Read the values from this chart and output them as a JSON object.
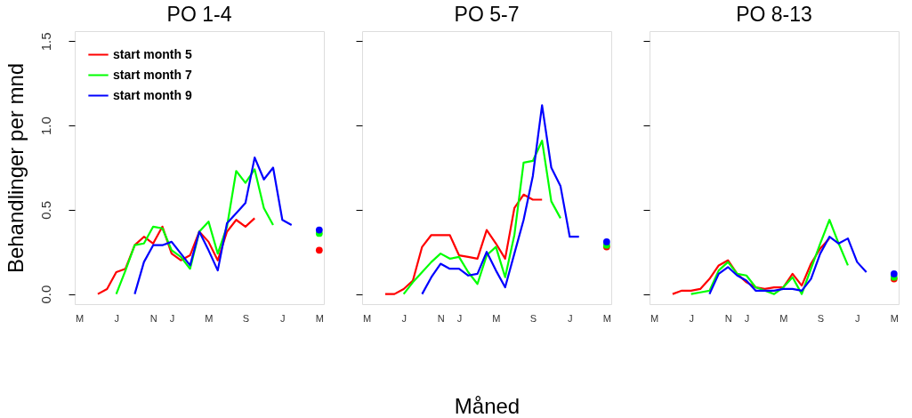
{
  "chart_data": [
    {
      "type": "line",
      "title": "PO 1-4",
      "ylabel": "Behandlinger per mnd",
      "ylim": [
        -0.06,
        1.56
      ],
      "categories": [
        "M",
        null,
        null,
        null,
        "J",
        null,
        null,
        null,
        "N",
        null,
        "J",
        null,
        null,
        null,
        "M",
        null,
        null,
        null,
        "S",
        null,
        null,
        null,
        "J",
        null,
        null,
        null,
        "M"
      ],
      "yticks": [
        {
          "value": 0,
          "label": "0.0"
        },
        0.5,
        {
          "value": 1,
          "label": "1.0"
        },
        1.5
      ],
      "legend": "top left",
      "line_style": "solid",
      "series": [
        {
          "name": "start month 5",
          "color": "#ff0000",
          "values": [
            null,
            null,
            0.0,
            0.03,
            0.13,
            0.15,
            0.29,
            0.34,
            0.3,
            0.4,
            0.24,
            0.2,
            0.23,
            0.37,
            0.31,
            0.2,
            0.37,
            0.44,
            0.4,
            0.45,
            null,
            null,
            null,
            null,
            null,
            null,
            null
          ]
        },
        {
          "name": "start month 7",
          "color": "#00ff00",
          "values": [
            null,
            null,
            null,
            null,
            0.0,
            0.14,
            0.29,
            0.3,
            0.4,
            0.39,
            0.26,
            0.22,
            0.15,
            0.37,
            0.43,
            0.24,
            0.4,
            0.73,
            0.66,
            0.74,
            0.51,
            0.41,
            null,
            null,
            null,
            null,
            null
          ]
        },
        {
          "name": "start month 9",
          "color": "#0000ff",
          "values": [
            null,
            null,
            null,
            null,
            null,
            null,
            0.0,
            0.19,
            0.29,
            0.29,
            0.31,
            0.24,
            0.17,
            0.37,
            0.26,
            0.14,
            0.42,
            0.48,
            0.54,
            0.81,
            0.68,
            0.75,
            0.44,
            0.41,
            null,
            null,
            null
          ]
        },
        {
          "type": "scatter",
          "marker": "circle",
          "color": "#ff0000",
          "values": [
            null,
            null,
            null,
            null,
            null,
            null,
            null,
            null,
            null,
            null,
            null,
            null,
            null,
            null,
            null,
            null,
            null,
            null,
            null,
            null,
            null,
            null,
            null,
            null,
            null,
            null,
            0.26
          ]
        },
        {
          "type": "scatter",
          "marker": "circle",
          "color": "#00ff00",
          "values": [
            null,
            null,
            null,
            null,
            null,
            null,
            null,
            null,
            null,
            null,
            null,
            null,
            null,
            null,
            null,
            null,
            null,
            null,
            null,
            null,
            null,
            null,
            null,
            null,
            null,
            null,
            0.36
          ]
        },
        {
          "type": "scatter",
          "marker": "circle",
          "color": "#0000ff",
          "values": [
            null,
            null,
            null,
            null,
            null,
            null,
            null,
            null,
            null,
            null,
            null,
            null,
            null,
            null,
            null,
            null,
            null,
            null,
            null,
            null,
            null,
            null,
            null,
            null,
            null,
            null,
            0.38
          ]
        }
      ]
    },
    {
      "type": "line",
      "title": "PO 5-7",
      "xlabel": "Måned",
      "ylim": [
        -0.06,
        1.56
      ],
      "tick_labels": "x",
      "categories": [
        "M",
        null,
        null,
        null,
        "J",
        null,
        null,
        null,
        "N",
        null,
        "J",
        null,
        null,
        null,
        "M",
        null,
        null,
        null,
        "S",
        null,
        null,
        null,
        "J",
        null,
        null,
        null,
        "M"
      ],
      "yticks": [
        0,
        0.5,
        1,
        1.5
      ],
      "line_style": "solid",
      "series": [
        {
          "color": "#ff0000",
          "values": [
            null,
            null,
            0.0,
            0.0,
            0.03,
            0.08,
            0.28,
            0.35,
            0.35,
            0.35,
            0.23,
            0.22,
            0.21,
            0.38,
            0.3,
            0.21,
            0.51,
            0.59,
            0.56,
            0.56,
            null,
            null,
            null,
            null,
            null,
            null,
            null
          ]
        },
        {
          "color": "#00ff00",
          "values": [
            null,
            null,
            null,
            null,
            0.0,
            0.07,
            0.13,
            0.19,
            0.24,
            0.21,
            0.22,
            0.13,
            0.06,
            0.23,
            0.28,
            0.1,
            0.35,
            0.78,
            0.79,
            0.91,
            0.55,
            0.45,
            null,
            null,
            null,
            null,
            null
          ]
        },
        {
          "color": "#0000ff",
          "values": [
            null,
            null,
            null,
            null,
            null,
            null,
            0.0,
            0.1,
            0.18,
            0.15,
            0.15,
            0.11,
            0.12,
            0.25,
            0.14,
            0.04,
            0.24,
            0.44,
            0.7,
            1.12,
            0.75,
            0.64,
            0.34,
            0.34,
            null,
            null,
            null
          ]
        },
        {
          "type": "scatter",
          "marker": "circle",
          "color": "#ff0000",
          "values": [
            null,
            null,
            null,
            null,
            null,
            null,
            null,
            null,
            null,
            null,
            null,
            null,
            null,
            null,
            null,
            null,
            null,
            null,
            null,
            null,
            null,
            null,
            null,
            null,
            null,
            null,
            0.28
          ]
        },
        {
          "type": "scatter",
          "marker": "circle",
          "color": "#00ff00",
          "values": [
            null,
            null,
            null,
            null,
            null,
            null,
            null,
            null,
            null,
            null,
            null,
            null,
            null,
            null,
            null,
            null,
            null,
            null,
            null,
            null,
            null,
            null,
            null,
            null,
            null,
            null,
            0.29
          ]
        },
        {
          "type": "scatter",
          "marker": "circle",
          "color": "#0000ff",
          "values": [
            null,
            null,
            null,
            null,
            null,
            null,
            null,
            null,
            null,
            null,
            null,
            null,
            null,
            null,
            null,
            null,
            null,
            null,
            null,
            null,
            null,
            null,
            null,
            null,
            null,
            null,
            0.31
          ]
        }
      ]
    },
    {
      "type": "line",
      "title": "PO 8-13",
      "ylim": [
        -0.06,
        1.56
      ],
      "tick_labels": "x",
      "categories": [
        "M",
        null,
        null,
        null,
        "J",
        null,
        null,
        null,
        "N",
        null,
        "J",
        null,
        null,
        null,
        "M",
        null,
        null,
        null,
        "S",
        null,
        null,
        null,
        "J",
        null,
        null,
        null,
        "M"
      ],
      "yticks": [
        0,
        0.5,
        1,
        1.5
      ],
      "line_style": "solid",
      "series": [
        {
          "color": "#ff0000",
          "values": [
            null,
            null,
            0.0,
            0.02,
            0.02,
            0.03,
            0.09,
            0.17,
            0.2,
            0.12,
            0.07,
            0.04,
            0.03,
            0.04,
            0.04,
            0.12,
            0.05,
            0.18,
            0.27,
            0.33,
            null,
            null,
            null,
            null,
            null,
            null,
            null
          ]
        },
        {
          "color": "#00ff00",
          "values": [
            null,
            null,
            null,
            null,
            0.0,
            0.01,
            0.02,
            0.14,
            0.19,
            0.12,
            0.11,
            0.04,
            0.02,
            0.0,
            0.04,
            0.1,
            0.0,
            0.15,
            0.3,
            0.44,
            0.3,
            0.17,
            null,
            null,
            null,
            null,
            null
          ]
        },
        {
          "color": "#0000ff",
          "values": [
            null,
            null,
            null,
            null,
            null,
            null,
            0.0,
            0.12,
            0.16,
            0.11,
            0.08,
            0.02,
            0.02,
            0.02,
            0.03,
            0.03,
            0.02,
            0.09,
            0.24,
            0.34,
            0.3,
            0.33,
            0.19,
            0.13,
            null,
            null,
            null
          ]
        },
        {
          "type": "scatter",
          "marker": "circle",
          "color": "#ff0000",
          "values": [
            null,
            null,
            null,
            null,
            null,
            null,
            null,
            null,
            null,
            null,
            null,
            null,
            null,
            null,
            null,
            null,
            null,
            null,
            null,
            null,
            null,
            null,
            null,
            null,
            null,
            null,
            0.09
          ]
        },
        {
          "type": "scatter",
          "marker": "circle",
          "color": "#00ff00",
          "values": [
            null,
            null,
            null,
            null,
            null,
            null,
            null,
            null,
            null,
            null,
            null,
            null,
            null,
            null,
            null,
            null,
            null,
            null,
            null,
            null,
            null,
            null,
            null,
            null,
            null,
            null,
            0.1
          ]
        },
        {
          "type": "scatter",
          "marker": "circle",
          "color": "#0000ff",
          "values": [
            null,
            null,
            null,
            null,
            null,
            null,
            null,
            null,
            null,
            null,
            null,
            null,
            null,
            null,
            null,
            null,
            null,
            null,
            null,
            null,
            null,
            null,
            null,
            null,
            null,
            null,
            0.12
          ]
        }
      ]
    }
  ]
}
